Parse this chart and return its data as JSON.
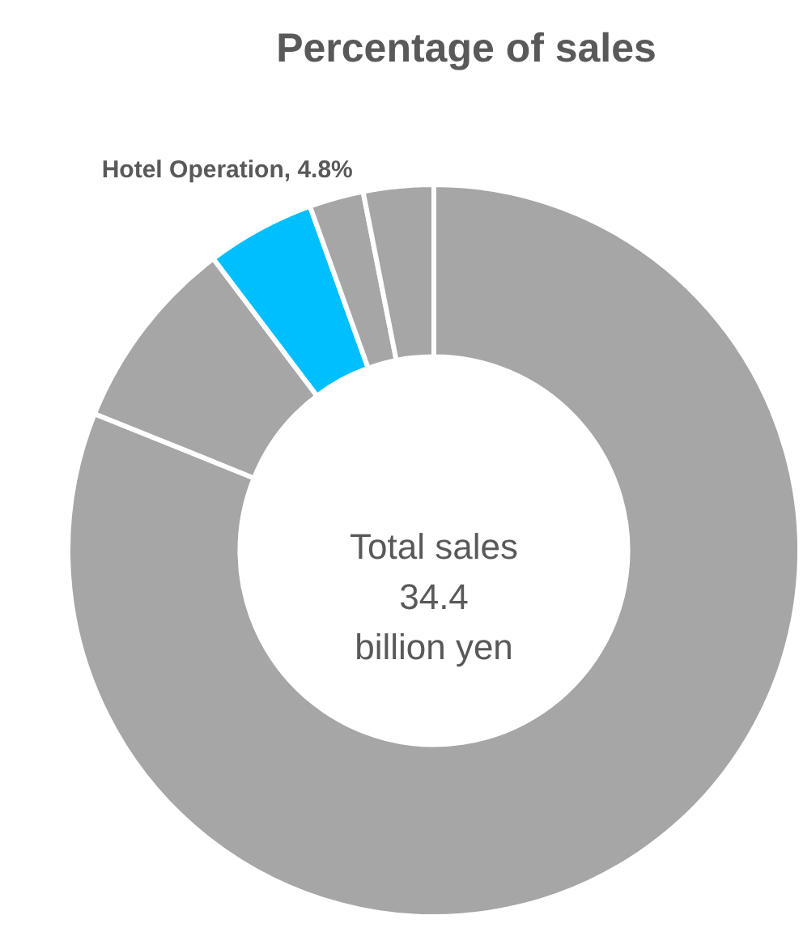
{
  "chart_data": {
    "type": "donut",
    "title": "Percentage of sales",
    "categories": [
      null,
      null,
      "Hotel Operation",
      null,
      null
    ],
    "values": [
      81.1,
      8.6,
      4.8,
      2.4,
      3.1
    ],
    "colors": [
      "#a6a6a6",
      "#a6a6a6",
      "#00bfff",
      "#a6a6a6",
      "#a6a6a6"
    ],
    "value_labels": [
      null,
      null,
      "4.8%",
      null,
      null
    ],
    "annotations": [
      "Total sales\n34.4\nbillion yen"
    ]
  }
}
